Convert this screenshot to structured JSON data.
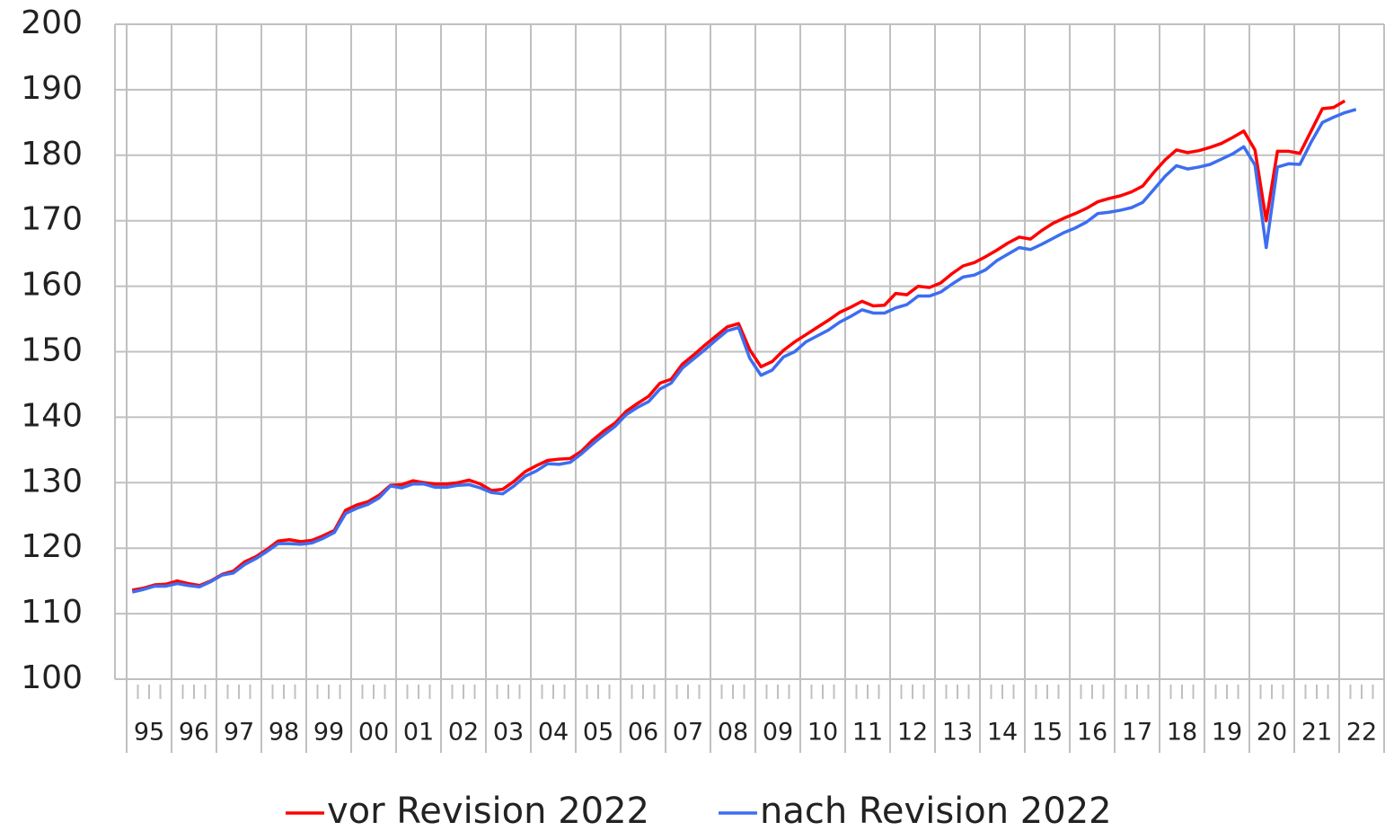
{
  "chart_data": {
    "type": "line",
    "categories": [
      "95",
      null,
      null,
      null,
      "96",
      null,
      null,
      null,
      "97",
      null,
      null,
      null,
      "98",
      null,
      null,
      null,
      "99",
      null,
      null,
      null,
      "00",
      null,
      null,
      null,
      "01",
      null,
      null,
      null,
      "02",
      null,
      null,
      null,
      "03",
      null,
      null,
      null,
      "04",
      null,
      null,
      null,
      "05",
      null,
      null,
      null,
      "06",
      null,
      null,
      null,
      "07",
      null,
      null,
      null,
      "08",
      null,
      null,
      null,
      "09",
      null,
      null,
      null,
      "10",
      null,
      null,
      null,
      "11",
      null,
      null,
      null,
      "12",
      null,
      null,
      null,
      "13",
      null,
      null,
      null,
      "14",
      null,
      null,
      null,
      "15",
      null,
      null,
      null,
      "16",
      null,
      null,
      null,
      "17",
      null,
      null,
      null,
      "18",
      null,
      null,
      null,
      "19",
      null,
      null,
      null,
      "20",
      null,
      null,
      null,
      "21",
      null,
      null,
      null,
      "22",
      null,
      null,
      null
    ],
    "series": [
      {
        "name": "vor Revision 2022",
        "color": "#ff0000",
        "values": [
          113.6,
          113.9,
          114.4,
          114.5,
          115.0,
          114.6,
          114.3,
          115.0,
          116.0,
          116.5,
          117.9,
          118.7,
          119.8,
          121.1,
          121.3,
          121.0,
          121.2,
          121.9,
          122.7,
          125.8,
          126.6,
          127.1,
          128.1,
          129.6,
          129.7,
          130.3,
          130.0,
          129.8,
          129.8,
          130.0,
          130.4,
          129.8,
          128.8,
          129.0,
          130.2,
          131.7,
          132.6,
          133.4,
          133.6,
          133.7,
          134.8,
          136.5,
          137.9,
          139.1,
          140.9,
          142.1,
          143.2,
          145.2,
          145.8,
          148.1,
          149.5,
          151.0,
          152.4,
          153.8,
          154.3,
          150.3,
          147.7,
          148.5,
          150.2,
          151.5,
          152.6,
          153.7,
          154.8,
          156.0,
          156.8,
          157.7,
          157.0,
          157.1,
          158.9,
          158.7,
          160.0,
          159.8,
          160.5,
          161.9,
          163.1,
          163.6,
          164.5,
          165.5,
          166.6,
          167.5,
          167.2,
          168.5,
          169.6,
          170.4,
          171.1,
          171.9,
          172.9,
          173.4,
          173.8,
          174.4,
          175.3,
          177.4,
          179.3,
          180.8,
          180.4,
          180.7,
          181.2,
          181.8,
          182.7,
          183.7,
          180.8,
          170.0,
          180.6,
          180.6,
          180.3,
          183.7,
          187.1,
          187.3,
          188.3,
          null,
          null,
          null
        ]
      },
      {
        "name": "nach Revision 2022",
        "color": "#3d6ef0",
        "values": [
          113.3,
          113.7,
          114.2,
          114.2,
          114.6,
          114.3,
          114.1,
          114.9,
          115.9,
          116.2,
          117.5,
          118.4,
          119.5,
          120.7,
          120.7,
          120.6,
          120.8,
          121.5,
          122.4,
          125.3,
          126.1,
          126.7,
          127.7,
          129.5,
          129.2,
          129.8,
          129.8,
          129.3,
          129.3,
          129.6,
          129.7,
          129.2,
          128.5,
          128.3,
          129.5,
          131.0,
          131.8,
          132.9,
          132.8,
          133.1,
          134.4,
          135.9,
          137.3,
          138.6,
          140.4,
          141.5,
          142.4,
          144.3,
          145.2,
          147.5,
          148.9,
          150.3,
          151.8,
          153.2,
          153.7,
          149.0,
          146.4,
          147.2,
          149.2,
          150.0,
          151.5,
          152.4,
          153.3,
          154.5,
          155.4,
          156.4,
          155.9,
          155.9,
          156.7,
          157.2,
          158.5,
          158.5,
          159.1,
          160.3,
          161.4,
          161.7,
          162.5,
          163.9,
          164.9,
          165.9,
          165.6,
          166.4,
          167.3,
          168.2,
          168.9,
          169.8,
          171.1,
          171.3,
          171.6,
          172.0,
          172.8,
          174.8,
          176.8,
          178.4,
          177.9,
          178.2,
          178.6,
          179.4,
          180.2,
          181.3,
          178.5,
          165.9,
          178.2,
          178.7,
          178.6,
          182.0,
          185.0,
          185.8,
          186.5,
          187.0,
          null,
          null
        ]
      }
    ],
    "ylim": [
      100,
      200
    ],
    "yticks": [
      100,
      110,
      120,
      130,
      140,
      150,
      160,
      170,
      180,
      190,
      200
    ],
    "grid": true,
    "legend": "bottom"
  }
}
